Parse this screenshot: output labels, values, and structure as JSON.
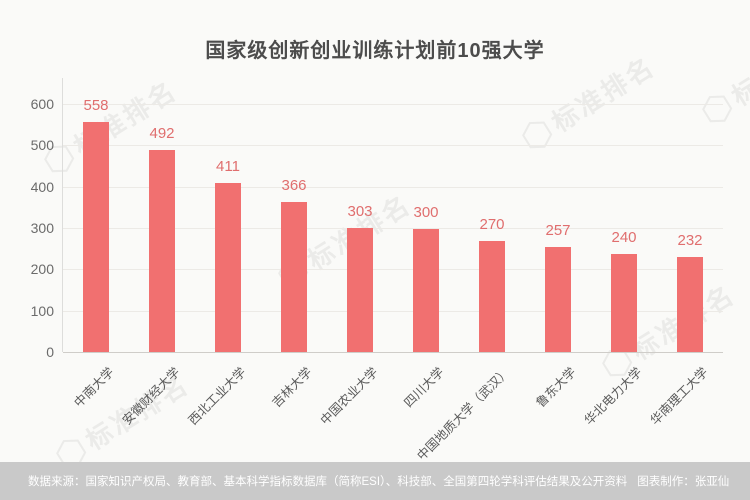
{
  "title": "国家级创新创业训练计划前10强大学",
  "watermark": {
    "text": "标准排名",
    "logo_glyph": "⬡"
  },
  "footer": {
    "source": "数据来源：国家知识产权局、教育部、基本科学指标数据库（简称ESI）、科技部、全国第四轮学科评估结果及公开资料",
    "credit": "图表制作：张亚仙"
  },
  "colors": {
    "background": "#FAFAF8",
    "bar": "#F17070",
    "value_label": "#E06E6E",
    "axis_text": "#6B6B6B",
    "title_text": "#4C4C4C",
    "grid": "#ECEAE6",
    "footer_bg": "#C9C9C9",
    "footer_text": "#FFFFFF"
  },
  "chart_data": {
    "type": "bar",
    "title": "国家级创新创业训练计划前10强大学",
    "categories": [
      "中南大学",
      "安徽财经大学",
      "西北工业大学",
      "吉林大学",
      "中国农业大学",
      "四川大学",
      "中国地质大学（武汉）",
      "鲁东大学",
      "华北电力大学",
      "华南理工大学"
    ],
    "values": [
      558,
      492,
      411,
      366,
      303,
      300,
      270,
      257,
      240,
      232
    ],
    "xlabel": "",
    "ylabel": "",
    "ylim": [
      0,
      600
    ],
    "yticks": [
      0,
      100,
      200,
      300,
      400,
      500,
      600
    ],
    "grid": true,
    "legend": false,
    "bar_labels_shown": true
  }
}
